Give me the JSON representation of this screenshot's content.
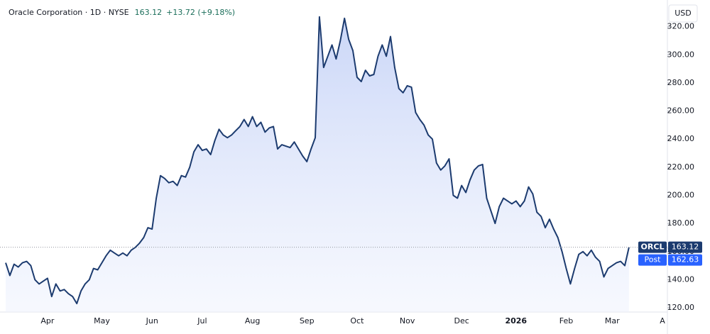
{
  "chart_data": {
    "type": "line",
    "title": "Oracle Corporation · 1D · NYSE",
    "price": 163.12,
    "change_label": "+13.72 (+9.18%)",
    "currency": "USD",
    "post_market": {
      "label": "Post",
      "value": 162.63
    },
    "categories": [
      null,
      null,
      null,
      null,
      null,
      null,
      null,
      null,
      null,
      null,
      "Apr",
      null,
      null,
      null,
      null,
      null,
      null,
      null,
      null,
      null,
      null,
      null,
      null,
      "May",
      null,
      null,
      null,
      null,
      null,
      null,
      null,
      null,
      null,
      null,
      null,
      "Jun",
      null,
      null,
      null,
      null,
      null,
      null,
      null,
      null,
      null,
      null,
      null,
      "Jul",
      null,
      null,
      null,
      null,
      null,
      null,
      null,
      null,
      null,
      null,
      null,
      "Aug",
      null,
      null,
      null,
      null,
      null,
      null,
      null,
      null,
      null,
      null,
      null,
      null,
      "Sep",
      null,
      null,
      null,
      null,
      null,
      null,
      null,
      null,
      null,
      null,
      null,
      "Oct",
      null,
      null,
      null,
      null,
      null,
      null,
      null,
      null,
      null,
      null,
      null,
      "Nov",
      null,
      null,
      null,
      null,
      null,
      null,
      null,
      null,
      null,
      null,
      null,
      null,
      "Dec",
      null,
      null,
      null,
      null,
      null,
      null,
      null,
      null,
      null,
      null,
      null,
      null,
      "2026",
      null,
      null,
      null,
      null,
      null,
      null,
      null,
      null,
      null,
      null,
      null,
      "Feb",
      null,
      null,
      null,
      null,
      null,
      null,
      null,
      null,
      null,
      null,
      "Mar",
      null,
      null,
      null,
      null,
      null,
      null,
      null,
      null,
      null,
      null,
      null,
      "A"
    ],
    "series": [
      {
        "name": "ORCL",
        "color": "#1c3b6f",
        "values": [
          152,
          143,
          151,
          149,
          152,
          153,
          150,
          140,
          137,
          139,
          141,
          128,
          137,
          132,
          133,
          130,
          128,
          123,
          132,
          137,
          140,
          148,
          147,
          152,
          157,
          161,
          159,
          157,
          159,
          157,
          161,
          163,
          166,
          170,
          177,
          176,
          198,
          214,
          212,
          209,
          210,
          207,
          214,
          213,
          220,
          231,
          236,
          232,
          233,
          229,
          239,
          247,
          243,
          241,
          243,
          246,
          249,
          254,
          249,
          256,
          249,
          252,
          245,
          248,
          249,
          233,
          236,
          235,
          234,
          238,
          233,
          228,
          224,
          233,
          241,
          327,
          291,
          299,
          307,
          297,
          310,
          326,
          311,
          303,
          284,
          281,
          289,
          285,
          286,
          299,
          307,
          299,
          313,
          291,
          276,
          273,
          278,
          277,
          259,
          254,
          250,
          243,
          240,
          223,
          218,
          221,
          226,
          200,
          198,
          207,
          202,
          211,
          218,
          221,
          222,
          198,
          189,
          180,
          192,
          198,
          196,
          194,
          196,
          192,
          196,
          206,
          201,
          188,
          185,
          177,
          183,
          176,
          170,
          160,
          148,
          137,
          148,
          158,
          160,
          157,
          161,
          156,
          153,
          142,
          148,
          150,
          152,
          153,
          150,
          163.12,
          null,
          null,
          null,
          null,
          null,
          null,
          null,
          null
        ]
      }
    ],
    "ylim": [
      117,
      339
    ],
    "yticks": [
      {
        "value": 120,
        "label": "120.00"
      },
      {
        "value": 140,
        "label": "140.00"
      },
      {
        "value": 160,
        "label": "160.00"
      },
      {
        "value": 180,
        "label": "180.00"
      },
      {
        "value": 200,
        "label": "200.00"
      },
      {
        "value": 220,
        "label": "220.00"
      },
      {
        "value": 240,
        "label": "240.00"
      },
      {
        "value": 260,
        "label": "260.00"
      },
      {
        "value": 280,
        "label": "280.00"
      },
      {
        "value": 300,
        "label": "300.00"
      },
      {
        "value": 320,
        "label": "320.00"
      }
    ],
    "grid": false
  }
}
